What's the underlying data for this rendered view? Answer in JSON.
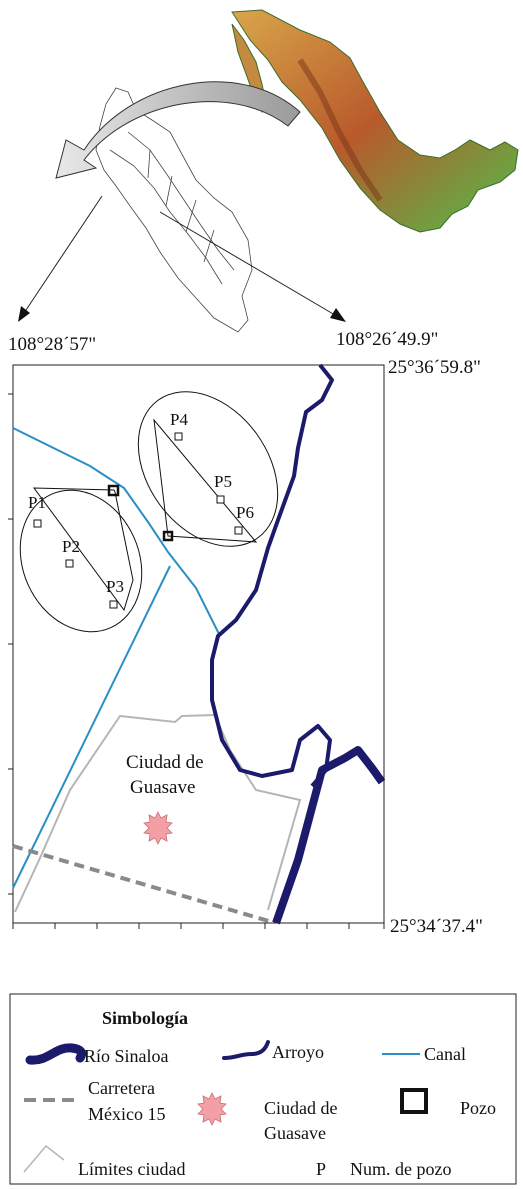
{
  "coordinates": {
    "top_left_lon": "108°28´57\"",
    "top_right_lon": "108°26´49.9\"",
    "top_right_lat": "25°36´59.8\"",
    "bottom_right_lat": "25°34´37.4\""
  },
  "map": {
    "city_label_line1": "Ciudad de",
    "city_label_line2": "Guasave",
    "wells": [
      "P1",
      "P2",
      "P3",
      "P4",
      "P5",
      "P6"
    ]
  },
  "legend": {
    "title": "Simbología",
    "rio": "Río Sinaloa",
    "arroyo": "Arroyo",
    "canal": "Canal",
    "carretera_line1": "Carretera",
    "carretera_line2": "México 15",
    "ciudad_line1": "Ciudad de",
    "ciudad_line2": "Guasave",
    "pozo": "Pozo",
    "limites": "Límites ciudad",
    "num_pozo_symbol": "P",
    "num_pozo": "Num. de pozo"
  },
  "colors": {
    "rio": "#1c1a6b",
    "canal": "#2a8fc4",
    "carretera": "#8a8a8a",
    "limites": "#b5b5b5",
    "ciudad_marker": "#f2a0a6"
  }
}
